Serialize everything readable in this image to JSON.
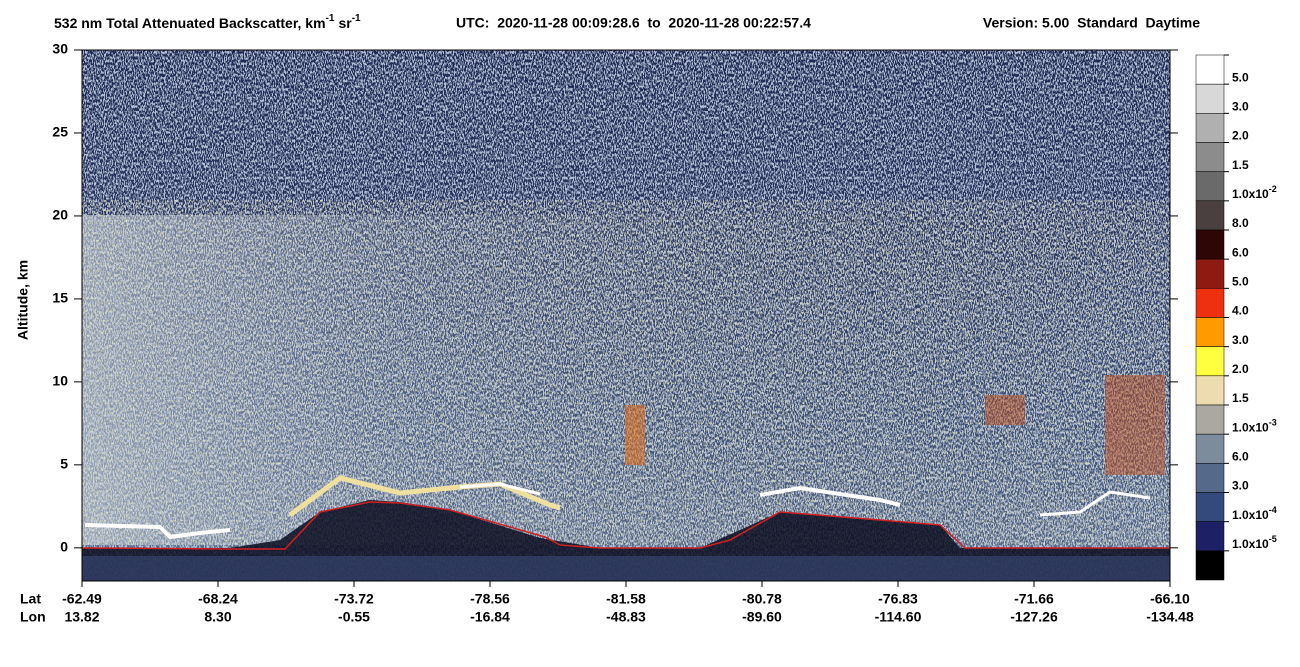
{
  "chart_data": {
    "type": "heatmap",
    "title": {
      "main": "532 nm Total Attenuated Backscatter, km",
      "sup1": "-1",
      "mid": "sr",
      "sup2": "-1"
    },
    "utc": "UTC:  2020-11-28 00:09:28.6  to  2020-11-28 00:22:57.4",
    "version": "Version: 5.00  Standard  Daytime",
    "ylabel": "Altitude, km",
    "ylim": [
      -2,
      30
    ],
    "yticks": [
      0,
      5,
      10,
      15,
      20,
      25,
      30
    ],
    "x_row_labels": [
      "Lat",
      "Lon"
    ],
    "lat": [
      "-62.49",
      "-68.24",
      "-73.72",
      "-78.56",
      "-81.58",
      "-80.78",
      "-76.83",
      "-71.66",
      "-66.10"
    ],
    "lon": [
      "13.82",
      "8.30",
      "-0.55",
      "-16.84",
      "-48.83",
      "-89.60",
      "-114.60",
      "-127.26",
      "-134.48"
    ],
    "colorbar": [
      {
        "color": "#ffffff",
        "label": "5.0"
      },
      {
        "color": "#d8d8d8",
        "label": "3.0"
      },
      {
        "color": "#b0b0b0",
        "label": "2.0"
      },
      {
        "color": "#8c8c8c",
        "label": "1.5"
      },
      {
        "color": "#6a6a6a",
        "label": "1.0x10",
        "exponent": "-2"
      },
      {
        "color": "#4a4040",
        "label": "8.0"
      },
      {
        "color": "#2e0606",
        "label": "6.0"
      },
      {
        "color": "#8e1a12",
        "label": "5.0"
      },
      {
        "color": "#ee3010",
        "label": "4.0"
      },
      {
        "color": "#ff9a00",
        "label": "3.0"
      },
      {
        "color": "#ffff40",
        "label": "2.0"
      },
      {
        "color": "#ecdcb0",
        "label": "1.5"
      },
      {
        "color": "#aaa8a0",
        "label": "1.0x10",
        "exponent": "-3"
      },
      {
        "color": "#7d8c9c",
        "label": "6.0"
      },
      {
        "color": "#55698a",
        "label": "3.0"
      },
      {
        "color": "#344a7c",
        "label": "1.0x10",
        "exponent": "-4"
      },
      {
        "color": "#1e2066",
        "label": "1.0x10",
        "exponent": "-5"
      },
      {
        "color": "#000000"
      }
    ]
  }
}
